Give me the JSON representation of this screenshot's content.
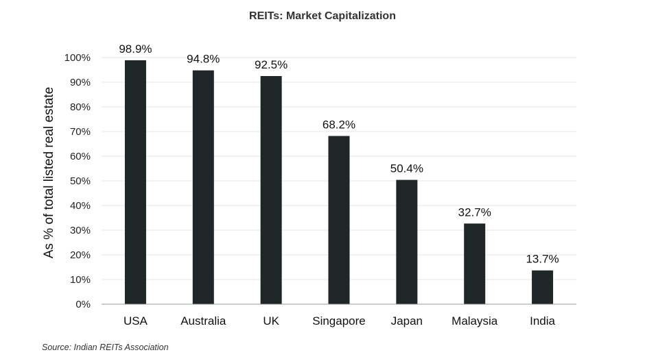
{
  "chart_data": {
    "type": "bar",
    "title": "REITs: Market Capitalization",
    "ylabel": "As % of total listed real estate",
    "xlabel": "",
    "categories": [
      "USA",
      "Australia",
      "UK",
      "Singapore",
      "Japan",
      "Malaysia",
      "India"
    ],
    "values": [
      98.9,
      94.8,
      92.5,
      68.2,
      50.4,
      32.7,
      13.7
    ],
    "value_labels": [
      "98.9%",
      "94.8%",
      "92.5%",
      "68.2%",
      "50.4%",
      "32.7%",
      "13.7%"
    ],
    "ylim": [
      0,
      100
    ],
    "yticks": [
      "0%",
      "10%",
      "20%",
      "30%",
      "40%",
      "50%",
      "60%",
      "70%",
      "80%",
      "90%",
      "100%"
    ],
    "grid": true,
    "legend": "none",
    "bar_color": "#1f2628",
    "grid_color": "#e6e6e6"
  },
  "source": "Source: Indian REITs Association"
}
